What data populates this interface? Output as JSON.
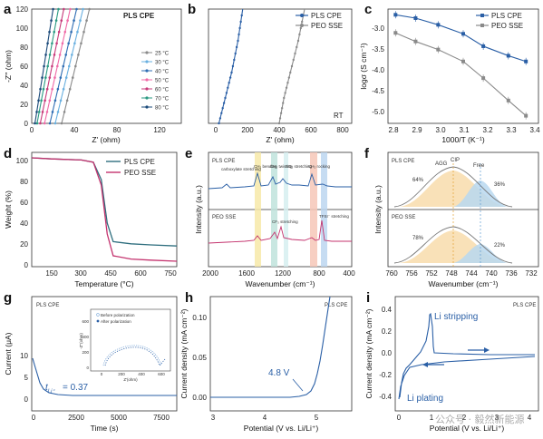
{
  "panels": {
    "a": {
      "label": "a",
      "title": "PLS CPE",
      "xlabel": "Z' (ohm)",
      "ylabel": "-Z'' (ohm)",
      "xticks": [
        "0",
        "40",
        "80",
        "120"
      ],
      "yticks": [
        "0",
        "20",
        "40",
        "60",
        "80",
        "100",
        "120"
      ],
      "legend": [
        "25 °C",
        "30 °C",
        "40 °C",
        "50 °C",
        "60 °C",
        "70 °C",
        "80 °C"
      ],
      "colors": [
        "#8a8a8a",
        "#6ab0e0",
        "#2f6db3",
        "#f06aa7",
        "#c73a7a",
        "#2a9a82",
        "#1b4a7a"
      ]
    },
    "b": {
      "label": "b",
      "legend": [
        "PLS CPE",
        "PEO SSE"
      ],
      "note": "RT",
      "xlabel": "Z' (ohm)",
      "xticks": [
        "0",
        "200",
        "400",
        "600",
        "800"
      ]
    },
    "c": {
      "label": "c",
      "legend": [
        "PLS CPE",
        "PEO SSE"
      ],
      "xlabel": "1000/T (K⁻¹)",
      "ylabel": "logσ (S cm⁻¹)",
      "xticks": [
        "2.8",
        "2.9",
        "3.0",
        "3.1",
        "3.2",
        "3.3",
        "3.4"
      ],
      "yticks": [
        "-3.0",
        "-3.5",
        "-4.0",
        "-4.5",
        "-5.0"
      ]
    },
    "d": {
      "label": "d",
      "legend": [
        "PLS CPE",
        "PEO SSE"
      ],
      "xlabel": "Temperature (°C)",
      "ylabel": "Weight (%)",
      "xticks": [
        "150",
        "300",
        "450",
        "600",
        "750"
      ],
      "yticks": [
        "0",
        "20",
        "40",
        "60",
        "80",
        "100"
      ]
    },
    "e": {
      "label": "e",
      "top_title": "PLS CPE",
      "bottom_title": "PEO SSE",
      "annotations_top": [
        "carboxylate stretching",
        "CH₂ bending",
        "CH₂ twisting",
        "SO₂ stretching",
        "CH₂ rocking"
      ],
      "annotations_bottom": [
        "CF₃ stretching",
        "TFSI⁻ stretching"
      ],
      "xlabel": "Wavenumber (cm⁻¹)",
      "ylabel": "Intensity (a.u.)",
      "xticks": [
        "2000",
        "1600",
        "1200",
        "800",
        "400"
      ]
    },
    "f": {
      "label": "f",
      "top_title": "PLS CPE",
      "bottom_title": "PEO SSE",
      "top_labels": [
        "AGG",
        "CIP",
        "Free"
      ],
      "top_pcts": [
        "64%",
        "36%"
      ],
      "bottom_pcts": [
        "78%",
        "22%"
      ],
      "xlabel": "Wavenumber (cm⁻¹)",
      "ylabel": "Intensity (a.u.)",
      "xticks": [
        "760",
        "756",
        "752",
        "748",
        "744",
        "740",
        "736",
        "732"
      ]
    },
    "g": {
      "label": "g",
      "title": "PLS CPE",
      "inset_legend": [
        "Before polarization",
        "After polarization"
      ],
      "inset_xlabel": "Z'(ohm)",
      "inset_ylabel": "-Z''(ohm)",
      "inset_xticks": [
        "0",
        "200",
        "400",
        "600"
      ],
      "inset_yticks": [
        "0",
        "200",
        "400",
        "600"
      ],
      "tli": "= 0.37",
      "xlabel": "Time (s)",
      "ylabel": "Current (μA)",
      "xticks": [
        "0",
        "2500",
        "5000",
        "7500"
      ],
      "yticks": [
        "0",
        "5",
        "10"
      ]
    },
    "h": {
      "label": "h",
      "title": "PLS CPE",
      "voltage": "4.8 V",
      "xlabel": "Potential (V vs. Li/Li⁺)",
      "ylabel": "Current density (mA cm⁻²)",
      "xticks": [
        "3",
        "4",
        "5"
      ],
      "yticks": [
        "0.00",
        "0.05",
        "0.10"
      ]
    },
    "i": {
      "label": "i",
      "title": "PLS CPE",
      "stripping": "Li stripping",
      "plating": "Li plating",
      "xlabel": "Potential (V vs. Li/Li⁺)",
      "ylabel": "Current density (mA cm⁻²)",
      "xticks": [
        "0",
        "1",
        "2",
        "3",
        "4"
      ],
      "yticks": [
        "0.4",
        "0.2",
        "0.0",
        "-0.2",
        "-0.4"
      ]
    }
  },
  "watermark": "公众号 · 毅然新能源",
  "chart_data": [
    {
      "type": "line",
      "title": "PLS CPE",
      "xlabel": "Z' (ohm)",
      "ylabel": "-Z'' (ohm)",
      "xlim": [
        0,
        140
      ],
      "ylim": [
        0,
        120
      ],
      "series": [
        {
          "name": "25 °C",
          "x": [
            28,
            54
          ],
          "y": [
            0,
            120
          ]
        },
        {
          "name": "30 °C",
          "x": [
            22,
            48
          ],
          "y": [
            0,
            120
          ]
        },
        {
          "name": "40 °C",
          "x": [
            17,
            42
          ],
          "y": [
            0,
            120
          ]
        },
        {
          "name": "50 °C",
          "x": [
            12,
            36
          ],
          "y": [
            0,
            120
          ]
        },
        {
          "name": "60 °C",
          "x": [
            8,
            30
          ],
          "y": [
            0,
            120
          ]
        },
        {
          "name": "70 °C",
          "x": [
            5,
            25
          ],
          "y": [
            0,
            120
          ]
        },
        {
          "name": "80 °C",
          "x": [
            3,
            20
          ],
          "y": [
            0,
            120
          ]
        }
      ]
    },
    {
      "type": "line",
      "xlabel": "Z' (ohm)",
      "xlim": [
        0,
        900
      ],
      "series": [
        {
          "name": "PLS CPE",
          "x": [
            20,
            60,
            100,
            140,
            170
          ],
          "y": [
            0,
            200,
            400,
            650,
            900
          ]
        },
        {
          "name": "PEO SSE",
          "x": [
            400,
            430,
            470,
            520,
            560
          ],
          "y": [
            0,
            200,
            400,
            650,
            900
          ]
        }
      ]
    },
    {
      "type": "line",
      "xlabel": "1000/T (K⁻¹)",
      "ylabel": "logσ (S cm⁻¹)",
      "xlim": [
        2.8,
        3.4
      ],
      "ylim": [
        -5.2,
        -2.8
      ],
      "series": [
        {
          "name": "PLS CPE",
          "x": [
            2.83,
            2.91,
            3.0,
            3.1,
            3.18,
            3.28,
            3.35
          ],
          "y": [
            -2.92,
            -2.99,
            -3.13,
            -3.32,
            -3.58,
            -3.78,
            -3.9
          ]
        },
        {
          "name": "PEO SSE",
          "x": [
            2.83,
            2.91,
            3.0,
            3.1,
            3.18,
            3.28,
            3.35
          ],
          "y": [
            -3.3,
            -3.48,
            -3.65,
            -3.9,
            -4.25,
            -4.72,
            -5.04
          ]
        }
      ]
    },
    {
      "type": "line",
      "xlabel": "Temperature (°C)",
      "ylabel": "Weight (%)",
      "xlim": [
        50,
        780
      ],
      "ylim": [
        0,
        105
      ],
      "series": [
        {
          "name": "PLS CPE",
          "x": [
            50,
            150,
            300,
            360,
            400,
            430,
            460,
            550,
            650,
            780
          ],
          "y": [
            100,
            99,
            98,
            96,
            80,
            40,
            23,
            21,
            20,
            19
          ]
        },
        {
          "name": "PEO SSE",
          "x": [
            50,
            150,
            300,
            360,
            400,
            430,
            460,
            550,
            650,
            780
          ],
          "y": [
            100,
            99,
            98,
            96,
            75,
            30,
            10,
            7,
            6,
            5
          ]
        }
      ]
    }
  ]
}
